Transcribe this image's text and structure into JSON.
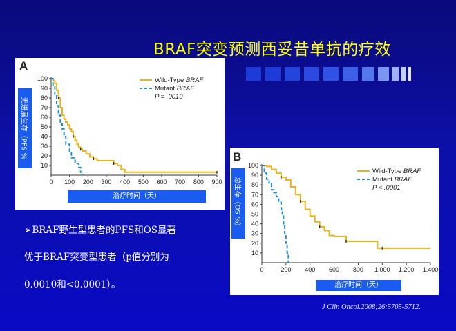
{
  "slide": {
    "title": "BRAF突变预测西妥昔单抗的疗效",
    "bullet_marker": "➢",
    "bullet_lines": [
      "BRAF野生型患者的PFS和OS显著",
      "优于BRAF突变型患者（p值分别为",
      "0.0010和<0.0001）。"
    ],
    "citation": "J Clin Oncol.2008;26:5705-5712.",
    "colors": {
      "background": "#0c10a8",
      "title": "#ffff00",
      "wild_type": "#e8b420",
      "mutant": "#1f8fd0",
      "label_bar": "#1a5cf0"
    }
  },
  "chart_data": [
    {
      "type": "line",
      "panel_label": "A",
      "ylabel": "无进展生存（PFS %",
      "xlabel": "治疗时间（天）",
      "xlim": [
        0,
        900
      ],
      "ylim": [
        0,
        100
      ],
      "xticks": [
        "0",
        "100",
        "200",
        "300",
        "400",
        "500",
        "600",
        "700",
        "800",
        "900"
      ],
      "yticks": [
        "10",
        "20",
        "30",
        "40",
        "50",
        "60",
        "70",
        "80",
        "90",
        "100"
      ],
      "legend": {
        "placement": "top-right",
        "entries": [
          "Wild-Type BRAF",
          "Mutant BRAF"
        ],
        "p_value": "P = .0010"
      },
      "series": [
        {
          "name": "Wild-Type BRAF",
          "color": "#e8b420",
          "x": [
            0,
            10,
            20,
            30,
            40,
            50,
            60,
            70,
            80,
            90,
            100,
            110,
            120,
            130,
            140,
            150,
            160,
            170,
            190,
            210,
            230,
            250,
            280,
            330,
            340,
            360,
            380,
            400,
            900
          ],
          "y": [
            100,
            98,
            95,
            88,
            80,
            70,
            62,
            58,
            55,
            52,
            48,
            45,
            40,
            36,
            32,
            29,
            27,
            25,
            22,
            19,
            17,
            15,
            15,
            15,
            12,
            10,
            6,
            3,
            3
          ]
        },
        {
          "name": "Mutant BRAF",
          "color": "#1f8fd0",
          "x": [
            0,
            10,
            20,
            30,
            40,
            50,
            60,
            70,
            80,
            100,
            110,
            130,
            150,
            160,
            170
          ],
          "y": [
            100,
            92,
            83,
            72,
            62,
            55,
            48,
            40,
            32,
            24,
            18,
            12,
            8,
            3,
            0
          ]
        }
      ]
    },
    {
      "type": "line",
      "panel_label": "B",
      "ylabel": "总生存（OS %）",
      "xlabel": "治疗时间（天）",
      "xlim": [
        0,
        1400
      ],
      "ylim": [
        0,
        100
      ],
      "xticks": [
        "0",
        "200",
        "400",
        "600",
        "800",
        "1,000",
        "1,200",
        "1,400"
      ],
      "yticks": [
        "10",
        "20",
        "30",
        "40",
        "50",
        "60",
        "70",
        "80",
        "90",
        "100"
      ],
      "legend": {
        "placement": "top-right",
        "entries": [
          "Wild-Type BRAF",
          "Mutant BRAF"
        ],
        "p_value": "P < .0001"
      },
      "series": [
        {
          "name": "Wild-Type BRAF",
          "color": "#e8b420",
          "x": [
            0,
            40,
            80,
            120,
            160,
            200,
            240,
            280,
            320,
            360,
            400,
            440,
            480,
            520,
            560,
            600,
            700,
            800,
            900,
            960,
            1000,
            1400
          ],
          "y": [
            100,
            99,
            96,
            92,
            88,
            85,
            78,
            70,
            63,
            55,
            48,
            42,
            37,
            33,
            28,
            27,
            22,
            22,
            22,
            15,
            15,
            15
          ]
        },
        {
          "name": "Mutant BRAF",
          "color": "#1f8fd0",
          "x": [
            0,
            20,
            40,
            60,
            80,
            100,
            120,
            140,
            160,
            170,
            180,
            190,
            200,
            210,
            220
          ],
          "y": [
            100,
            92,
            86,
            82,
            75,
            72,
            68,
            62,
            55,
            48,
            40,
            30,
            20,
            10,
            0
          ]
        }
      ]
    }
  ]
}
